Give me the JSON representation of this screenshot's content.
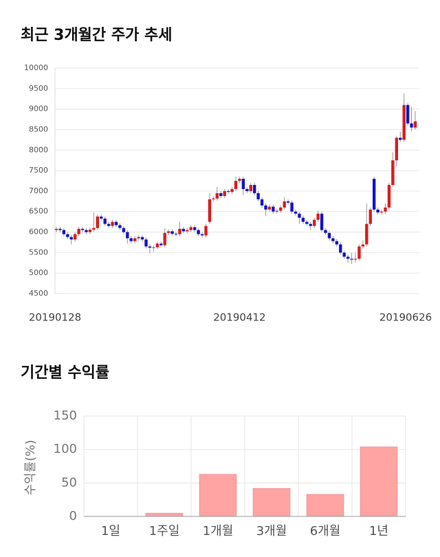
{
  "chart_data": [
    {
      "type": "candlestick",
      "title": "최근 3개월간 주가 추세",
      "categories": [
        "20190128",
        null,
        null,
        null,
        null,
        null,
        null,
        null,
        null,
        null,
        null,
        null,
        null,
        null,
        null,
        null,
        null,
        null,
        null,
        null,
        null,
        null,
        null,
        null,
        null,
        null,
        null,
        null,
        null,
        null,
        null,
        null,
        null,
        null,
        null,
        null,
        null,
        null,
        null,
        null,
        null,
        null,
        null,
        null,
        null,
        null,
        null,
        null,
        null,
        "20190412",
        null,
        null,
        null,
        null,
        null,
        null,
        null,
        null,
        null,
        null,
        null,
        null,
        null,
        null,
        null,
        null,
        null,
        null,
        null,
        null,
        null,
        null,
        null,
        null,
        null,
        null,
        null,
        null,
        null,
        null,
        null,
        null,
        null,
        null,
        null,
        null,
        null,
        null,
        null,
        null,
        null,
        null,
        null,
        null,
        null,
        null,
        "20190626"
      ],
      "open": [
        6050,
        6080,
        6050,
        5950,
        5880,
        5820,
        5950,
        6080,
        6050,
        6000,
        6060,
        6100,
        6380,
        6330,
        6200,
        6150,
        6250,
        6170,
        6100,
        6000,
        5850,
        5780,
        5850,
        5880,
        5820,
        5650,
        5620,
        5630,
        5720,
        5680,
        5980,
        6020,
        5960,
        5950,
        6080,
        6020,
        6050,
        6120,
        6050,
        5950,
        5920,
        6250,
        6800,
        6820,
        6950,
        6880,
        7000,
        6980,
        7050,
        7250,
        7300,
        7050,
        7000,
        7150,
        6950,
        6800,
        6650,
        6550,
        6620,
        6500,
        6520,
        6600,
        6750,
        6720,
        6500,
        6450,
        6350,
        6250,
        6200,
        6150,
        6300,
        6450,
        6050,
        5980,
        5850,
        5780,
        5700,
        5500,
        5400,
        5350,
        5330,
        5350,
        5650,
        5700,
        6200,
        7300,
        6550,
        6480,
        6500,
        6600,
        7150,
        7750,
        8300,
        8250,
        9100,
        8650,
        8550
      ],
      "high": [
        6130,
        6130,
        6100,
        6000,
        5930,
        6000,
        6130,
        6130,
        6100,
        6110,
        6480,
        6430,
        6430,
        6380,
        6250,
        6300,
        6300,
        6220,
        6150,
        6050,
        5900,
        5900,
        5930,
        5930,
        5870,
        5700,
        5680,
        5770,
        5770,
        6100,
        6070,
        6070,
        6010,
        6250,
        6130,
        6100,
        6170,
        6170,
        6100,
        6000,
        6200,
        6950,
        6870,
        7100,
        7000,
        7050,
        7050,
        7100,
        7350,
        7350,
        7350,
        7100,
        7200,
        7200,
        7000,
        6850,
        6700,
        6670,
        6670,
        6570,
        6650,
        6850,
        6800,
        6770,
        6550,
        6500,
        6400,
        6300,
        6250,
        6350,
        6520,
        6500,
        6100,
        6030,
        5900,
        5830,
        5750,
        5550,
        5450,
        5500,
        5500,
        5700,
        5800,
        6700,
        6600,
        7350,
        6600,
        6550,
        6700,
        7200,
        7950,
        8350,
        8450,
        9380,
        9150,
        9050,
        8950
      ],
      "low": [
        6000,
        6000,
        5900,
        5830,
        5700,
        5770,
        5900,
        6000,
        5950,
        5950,
        6010,
        6050,
        6280,
        6150,
        6100,
        6100,
        6120,
        6050,
        5950,
        5720,
        5730,
        5730,
        5800,
        5770,
        5600,
        5480,
        5520,
        5580,
        5630,
        5630,
        5930,
        5910,
        5900,
        5900,
        5970,
        5970,
        6000,
        6000,
        5900,
        5870,
        5870,
        6200,
        6750,
        6770,
        6830,
        6830,
        6930,
        6930,
        7000,
        7200,
        6900,
        6950,
        6950,
        6900,
        6750,
        6600,
        6400,
        6500,
        6450,
        6450,
        6470,
        6550,
        6670,
        6450,
        6400,
        6200,
        6200,
        6150,
        6050,
        6100,
        6250,
        6000,
        5930,
        5800,
        5730,
        5650,
        5450,
        5350,
        5250,
        5220,
        5250,
        5300,
        5600,
        5650,
        6150,
        6500,
        6430,
        6430,
        6450,
        6550,
        7100,
        7600,
        8200,
        8200,
        8600,
        8450,
        8500
      ],
      "close": [
        6080,
        6050,
        5950,
        5880,
        5820,
        5950,
        6080,
        6050,
        6000,
        6060,
        6100,
        6380,
        6330,
        6200,
        6150,
        6250,
        6170,
        6100,
        6000,
        5850,
        5780,
        5850,
        5880,
        5820,
        5650,
        5620,
        5630,
        5720,
        5680,
        5980,
        6020,
        5960,
        5950,
        6080,
        6020,
        6050,
        6120,
        6050,
        5950,
        5920,
        6150,
        6800,
        6820,
        6950,
        6880,
        7000,
        6980,
        7050,
        7250,
        7300,
        7050,
        7000,
        7150,
        6950,
        6800,
        6650,
        6550,
        6620,
        6500,
        6520,
        6600,
        6750,
        6720,
        6500,
        6450,
        6350,
        6250,
        6200,
        6150,
        6300,
        6450,
        6050,
        5980,
        5850,
        5780,
        5700,
        5500,
        5400,
        5350,
        5330,
        5350,
        5650,
        5700,
        6200,
        6550,
        6550,
        6480,
        6500,
        6600,
        7150,
        7750,
        8300,
        8250,
        9100,
        8650,
        8550,
        8700
      ],
      "up_color": "#d81e1e",
      "down_color": "#1414c8",
      "ylim": [
        4500,
        10000
      ],
      "yticks": [
        4500,
        5000,
        5500,
        6000,
        6500,
        7000,
        7500,
        8000,
        8500,
        9000,
        9500,
        10000
      ],
      "grid": true
    },
    {
      "type": "bar",
      "title": "기간별 수익률",
      "ylabel": "수익률(%)",
      "categories": [
        "1일",
        "1주일",
        "1개월",
        "3개월",
        "6개월",
        "1년"
      ],
      "values": [
        0,
        5,
        63,
        42,
        33,
        104
      ],
      "color": "#ffa3a3",
      "ylim": [
        0,
        150
      ],
      "yticks": [
        0,
        50,
        100,
        150
      ],
      "grid": true
    }
  ]
}
